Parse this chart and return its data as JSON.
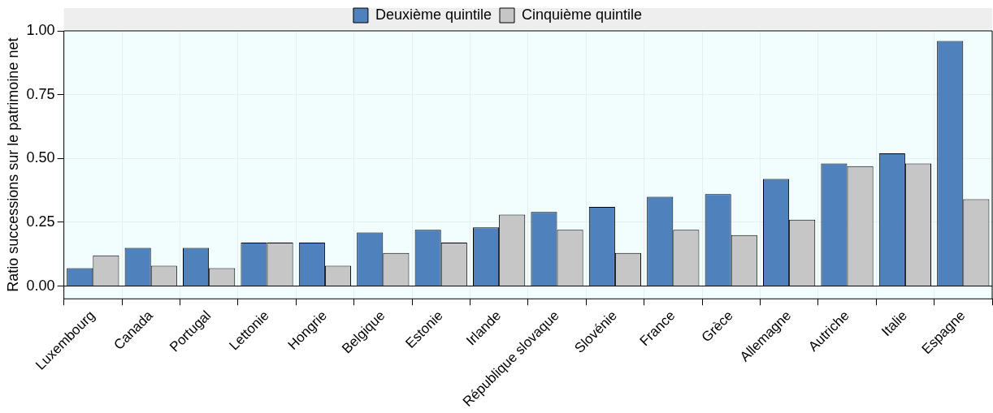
{
  "chart_data": {
    "type": "bar",
    "ylabel": "Ratio successions sur le patrimoine net",
    "categories": [
      "Luxembourg",
      "Canada",
      "Portugal",
      "Lettonie",
      "Hongrie",
      "Belgique",
      "Estonie",
      "Irlande",
      "République slovaque",
      "Slovénie",
      "France",
      "Grèce",
      "Allemagne",
      "Autriche",
      "Italie",
      "Espagne"
    ],
    "series": [
      {
        "name": "Deuxième quintile",
        "color": "#4f81bd",
        "values": [
          0.07,
          0.15,
          0.15,
          0.17,
          0.17,
          0.21,
          0.22,
          0.23,
          0.29,
          0.31,
          0.35,
          0.36,
          0.42,
          0.48,
          0.52,
          0.96
        ]
      },
      {
        "name": "Cinquième quintile",
        "color": "#c6c6c6",
        "values": [
          0.12,
          0.08,
          0.07,
          0.17,
          0.08,
          0.13,
          0.17,
          0.28,
          0.22,
          0.13,
          0.22,
          0.2,
          0.26,
          0.47,
          0.48,
          0.34
        ]
      }
    ],
    "ylim": [
      -0.05,
      1
    ],
    "yticks": [
      {
        "value": 0,
        "label": "0.00"
      },
      {
        "value": 0.25,
        "label": "0.25"
      },
      {
        "value": 0.5,
        "label": "0.50"
      },
      {
        "value": 0.75,
        "label": "0.75"
      },
      {
        "value": 1,
        "label": "1.00"
      }
    ],
    "grid": true,
    "legend": "top"
  }
}
